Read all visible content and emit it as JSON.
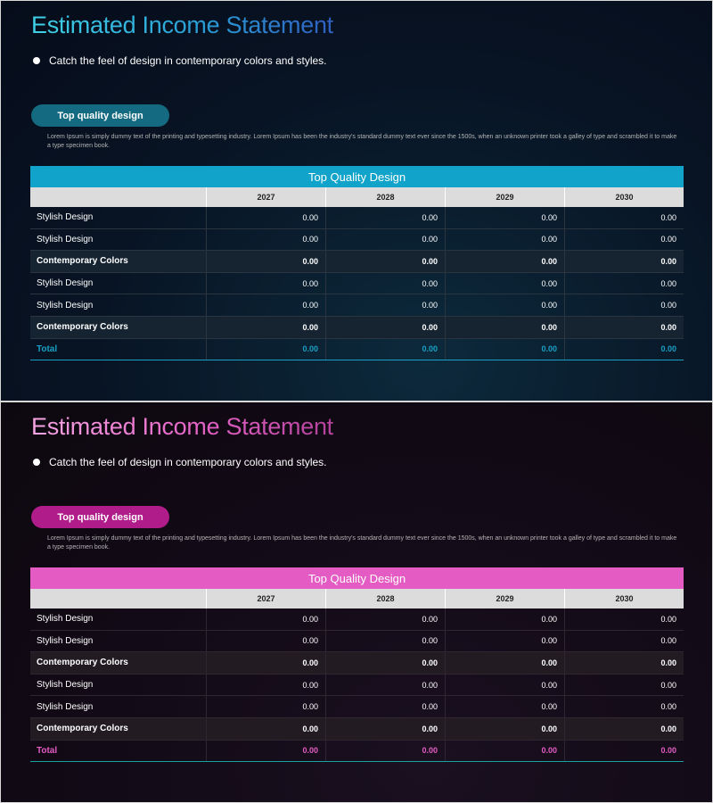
{
  "slides": [
    {
      "theme": "blue",
      "accent": "#11a3c9",
      "title": "Estimated Income Statement",
      "bullet": "Catch the feel of design in contemporary colors and styles.",
      "pill_label": "Top quality design",
      "description": "Lorem Ipsum is simply dummy text of the printing and typesetting industry. Lorem Ipsum has been the industry's standard dummy text ever since the 1500s, when an unknown printer took a galley of type and scrambled it to make a type specimen book.",
      "table": {
        "title": "Top Quality Design",
        "columns": [
          "",
          "2027",
          "2028",
          "2029",
          "2030"
        ],
        "rows": [
          {
            "label": "Stylish Design",
            "values": [
              "0.00",
              "0.00",
              "0.00",
              "0.00"
            ]
          },
          {
            "label": "Stylish Design",
            "values": [
              "0.00",
              "0.00",
              "0.00",
              "0.00"
            ]
          },
          {
            "label": "Contemporary Colors",
            "values": [
              "0.00",
              "0.00",
              "0.00",
              "0.00"
            ]
          },
          {
            "label": "Stylish Design",
            "values": [
              "0.00",
              "0.00",
              "0.00",
              "0.00"
            ]
          },
          {
            "label": "Stylish Design",
            "values": [
              "0.00",
              "0.00",
              "0.00",
              "0.00"
            ]
          },
          {
            "label": "Contemporary Colors",
            "values": [
              "0.00",
              "0.00",
              "0.00",
              "0.00"
            ]
          },
          {
            "label": "Total",
            "values": [
              "0.00",
              "0.00",
              "0.00",
              "0.00"
            ]
          }
        ]
      }
    },
    {
      "theme": "pink",
      "accent": "#e45cc3",
      "title": "Estimated Income Statement",
      "bullet": "Catch the feel of design in contemporary colors and styles.",
      "pill_label": "Top quality design",
      "description": "Lorem Ipsum is simply dummy text of the printing and typesetting industry. Lorem Ipsum has been the industry's standard dummy text ever since the 1500s, when an unknown printer took a galley of type and scrambled it to make a type specimen book.",
      "table": {
        "title": "Top Quality Design",
        "columns": [
          "",
          "2027",
          "2028",
          "2029",
          "2030"
        ],
        "rows": [
          {
            "label": "Stylish Design",
            "values": [
              "0.00",
              "0.00",
              "0.00",
              "0.00"
            ]
          },
          {
            "label": "Stylish Design",
            "values": [
              "0.00",
              "0.00",
              "0.00",
              "0.00"
            ]
          },
          {
            "label": "Contemporary Colors",
            "values": [
              "0.00",
              "0.00",
              "0.00",
              "0.00"
            ]
          },
          {
            "label": "Stylish Design",
            "values": [
              "0.00",
              "0.00",
              "0.00",
              "0.00"
            ]
          },
          {
            "label": "Stylish Design",
            "values": [
              "0.00",
              "0.00",
              "0.00",
              "0.00"
            ]
          },
          {
            "label": "Contemporary Colors",
            "values": [
              "0.00",
              "0.00",
              "0.00",
              "0.00"
            ]
          },
          {
            "label": "Total",
            "values": [
              "0.00",
              "0.00",
              "0.00",
              "0.00"
            ]
          }
        ]
      }
    }
  ]
}
